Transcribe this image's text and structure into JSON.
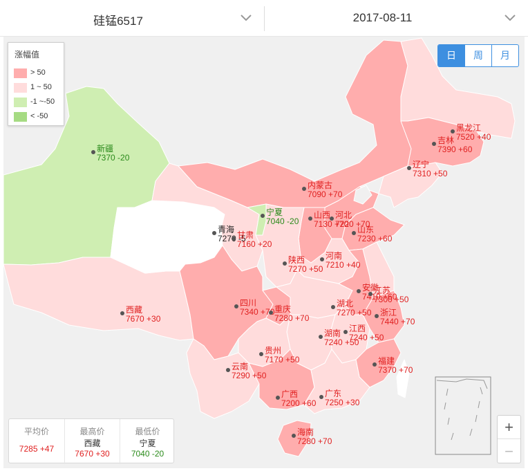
{
  "product_selector": {
    "value": "硅锰6517",
    "icon": "chevron-down-icon"
  },
  "date_selector": {
    "value": "2017-08-11",
    "icon": "chevron-down-icon"
  },
  "legend": {
    "title": "涨幅值",
    "items": [
      {
        "label": "> 50",
        "color": "#ffadad"
      },
      {
        "label": "1 ~ 50",
        "color": "#ffdcdc"
      },
      {
        "label": "-1 ~-50",
        "color": "#cfeeb2"
      },
      {
        "label": "< -50",
        "color": "#a6db83"
      }
    ]
  },
  "period_tabs": {
    "day": "日",
    "week": "周",
    "month": "月",
    "active": "day"
  },
  "colors": {
    "up_strong": "#ffadad",
    "up_weak": "#ffdcdc",
    "down_weak": "#cfeeb2",
    "no_data": "#ffffff",
    "sea": "#f0f0f0",
    "red_text": "#e02020",
    "green_text": "#2a8a1a",
    "accent": "#3d8fe0"
  },
  "provinces": [
    {
      "name": "新疆",
      "value": "7370 -20",
      "tone": "green"
    },
    {
      "name": "西藏",
      "value": "7670 +30",
      "tone": "red"
    },
    {
      "name": "青海",
      "value": "7270 -5",
      "tone": "black"
    },
    {
      "name": "甘肃",
      "value": "7160 +20",
      "tone": "red"
    },
    {
      "name": "宁夏",
      "value": "7040 -20",
      "tone": "green"
    },
    {
      "name": "内蒙古",
      "value": "7090 +70",
      "tone": "red"
    },
    {
      "name": "黑龙江",
      "value": "7520 +40",
      "tone": "red"
    },
    {
      "name": "吉林",
      "value": "7390 +60",
      "tone": "red"
    },
    {
      "name": "辽宁",
      "value": "7310 +50",
      "tone": "red"
    },
    {
      "name": "河北",
      "value": "7220 +70",
      "tone": "red"
    },
    {
      "name": "山西",
      "value": "7130 +70",
      "tone": "red"
    },
    {
      "name": "山东",
      "value": "7230 +60",
      "tone": "red"
    },
    {
      "name": "河南",
      "value": "7210 +40",
      "tone": "red"
    },
    {
      "name": "陕西",
      "value": "7270 +50",
      "tone": "red"
    },
    {
      "name": "四川",
      "value": "7340 +70",
      "tone": "red"
    },
    {
      "name": "重庆",
      "value": "7280 +70",
      "tone": "red"
    },
    {
      "name": "湖北",
      "value": "7270 +50",
      "tone": "red"
    },
    {
      "name": "安徽",
      "value": "7410 +60",
      "tone": "red"
    },
    {
      "name": "江苏",
      "value": "7300 +50",
      "tone": "red"
    },
    {
      "name": "浙江",
      "value": "7440 +70",
      "tone": "red"
    },
    {
      "name": "江西",
      "value": "7240 +50",
      "tone": "red"
    },
    {
      "name": "湖南",
      "value": "7240 +50",
      "tone": "red"
    },
    {
      "name": "贵州",
      "value": "7170 +50",
      "tone": "red"
    },
    {
      "name": "云南",
      "value": "7290 +50",
      "tone": "red"
    },
    {
      "name": "福建",
      "value": "7370 +70",
      "tone": "red"
    },
    {
      "name": "广西",
      "value": "7200 +60",
      "tone": "red"
    },
    {
      "name": "广东",
      "value": "7250 +30",
      "tone": "red"
    },
    {
      "name": "海南",
      "value": "7280 +70",
      "tone": "red"
    }
  ],
  "stats": {
    "avg": {
      "title": "平均价",
      "value": "7285 +47"
    },
    "high": {
      "title": "最高价",
      "name": "西藏",
      "value": "7670 +30"
    },
    "low": {
      "title": "最低价",
      "name": "宁夏",
      "value": "7040 -20"
    }
  },
  "zoom": {
    "in": "+",
    "out": "−"
  }
}
